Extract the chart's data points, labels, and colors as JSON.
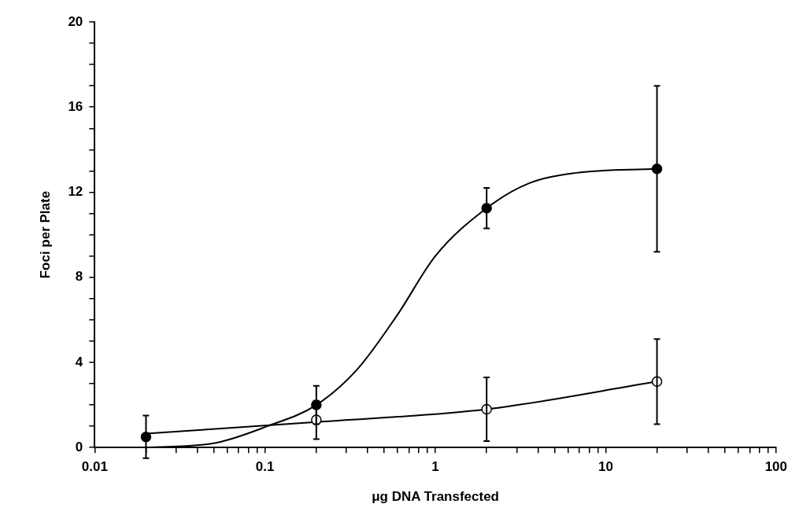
{
  "chart_data": {
    "type": "scatter",
    "xlabel": "μg DNA Transfected",
    "ylabel": "Foci per Plate",
    "log": "x",
    "grid": false,
    "legend": false,
    "marker": "circle",
    "xlim": [
      0.01,
      100
    ],
    "ylim": [
      0,
      20
    ],
    "xticks": [
      0.01,
      {
        "value": 0.02,
        "label": null
      },
      {
        "value": 0.03,
        "label": null
      },
      {
        "value": 0.04,
        "label": null
      },
      {
        "value": 0.05,
        "label": null
      },
      {
        "value": 0.06,
        "label": null
      },
      {
        "value": 0.07,
        "label": null
      },
      {
        "value": 0.08,
        "label": null
      },
      {
        "value": 0.09,
        "label": null
      },
      0.1,
      {
        "value": 0.2,
        "label": null
      },
      {
        "value": 0.3,
        "label": null
      },
      {
        "value": 0.4,
        "label": null
      },
      {
        "value": 0.5,
        "label": null
      },
      {
        "value": 0.6,
        "label": null
      },
      {
        "value": 0.7,
        "label": null
      },
      {
        "value": 0.8,
        "label": null
      },
      {
        "value": 0.9,
        "label": null
      },
      1,
      {
        "value": 2,
        "label": null
      },
      {
        "value": 3,
        "label": null
      },
      {
        "value": 4,
        "label": null
      },
      {
        "value": 5,
        "label": null
      },
      {
        "value": 6,
        "label": null
      },
      {
        "value": 7,
        "label": null
      },
      {
        "value": 8,
        "label": null
      },
      {
        "value": 9,
        "label": null
      },
      10,
      {
        "value": 20,
        "label": null
      },
      {
        "value": 30,
        "label": null
      },
      {
        "value": 40,
        "label": null
      },
      {
        "value": 50,
        "label": null
      },
      {
        "value": 60,
        "label": null
      },
      {
        "value": 70,
        "label": null
      },
      {
        "value": 80,
        "label": null
      },
      {
        "value": 90,
        "label": null
      },
      100
    ],
    "yticks": [
      0,
      {
        "value": 1,
        "label": null
      },
      {
        "value": 2,
        "label": null
      },
      {
        "value": 3,
        "label": null
      },
      4,
      {
        "value": 5,
        "label": null
      },
      {
        "value": 6,
        "label": null
      },
      {
        "value": 7,
        "label": null
      },
      8,
      {
        "value": 9,
        "label": null
      },
      {
        "value": 10,
        "label": null
      },
      {
        "value": 11,
        "label": null
      },
      12,
      {
        "value": 13,
        "label": null
      },
      {
        "value": 14,
        "label": null
      },
      {
        "value": 15,
        "label": null
      },
      16,
      {
        "value": 17,
        "label": null
      },
      {
        "value": 18,
        "label": null
      },
      {
        "value": 19,
        "label": null
      },
      20
    ],
    "series": [
      {
        "type": "line",
        "marker": "none",
        "color": "#000000",
        "x": [
          0.02,
          0.05,
          0.103,
          0.2,
          0.35,
          0.6,
          1,
          2,
          3.5,
          6.6,
          20
        ],
        "values": [
          0,
          0.2,
          1.0,
          2.0,
          3.7,
          6.25,
          9.0,
          11.25,
          12.4,
          12.9,
          13.1
        ]
      },
      {
        "type": "line",
        "marker": "none",
        "color": "#000000",
        "x": [
          0.02,
          0.2,
          2,
          20
        ],
        "values": [
          0.65,
          1.2,
          1.8,
          3.1
        ]
      },
      {
        "type": "scatter",
        "color": "#000000",
        "x": [
          0.02,
          0.2,
          2,
          20
        ],
        "values": [
          0.5,
          2.0,
          11.25,
          13.1
        ],
        "errors": [
          1.0,
          0.9,
          0.95,
          3.9
        ]
      },
      {
        "type": "scatter",
        "color": "#ffffff",
        "x": [
          0.2,
          2,
          20
        ],
        "values": [
          1.3,
          1.8,
          3.1
        ],
        "errors": [
          0.9,
          1.5,
          2.0
        ]
      }
    ]
  }
}
